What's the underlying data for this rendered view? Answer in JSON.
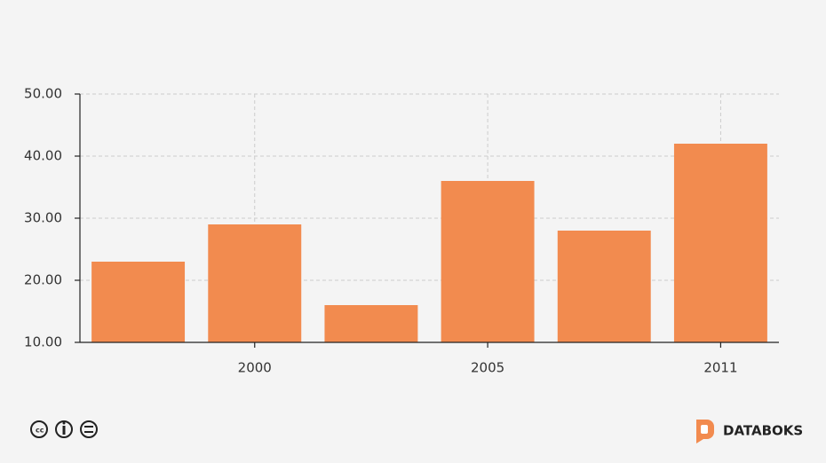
{
  "chart_data": {
    "type": "bar",
    "categories": [
      null,
      "2000",
      null,
      "2005",
      null,
      "2011"
    ],
    "values": [
      23,
      29,
      16,
      36,
      28,
      42
    ],
    "color": "#f28b4f",
    "ylim": [
      10,
      50
    ],
    "yticks": [
      {
        "value": 10,
        "label": "10.00"
      },
      {
        "value": 20,
        "label": "20.00"
      },
      {
        "value": 30,
        "label": "30.00"
      },
      {
        "value": 40,
        "label": "40.00"
      },
      {
        "value": 50,
        "label": "50.00"
      }
    ],
    "grid": true
  },
  "footer": {
    "brand": "DATABOKS"
  }
}
